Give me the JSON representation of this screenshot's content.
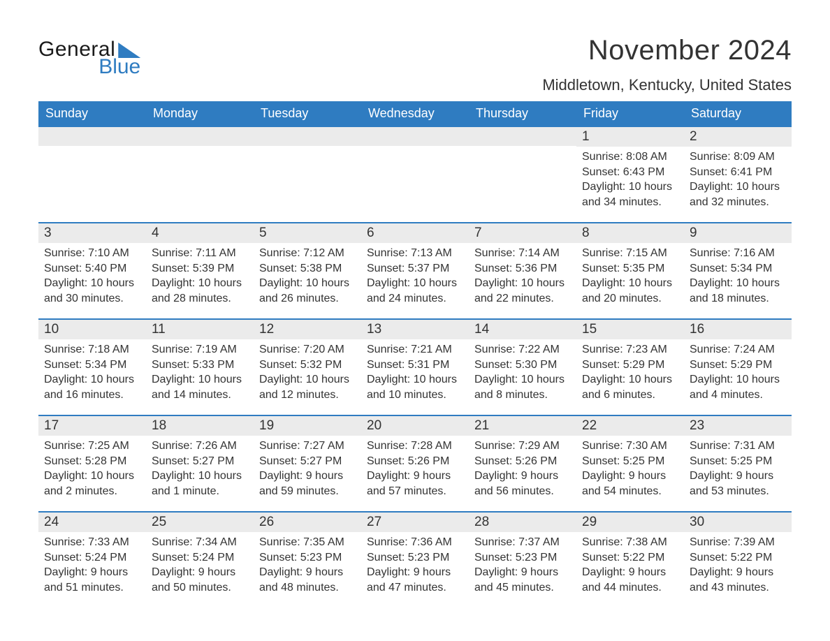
{
  "logo": {
    "text_general": "General",
    "text_blue": "Blue"
  },
  "header": {
    "month_title": "November 2024",
    "location": "Middletown, Kentucky, United States"
  },
  "colors": {
    "brand_blue": "#2f7cc1",
    "header_text": "#ffffff",
    "band_bg": "#ebebeb",
    "body_text": "#333333",
    "page_bg": "#ffffff"
  },
  "calendar": {
    "type": "table",
    "day_headers": [
      "Sunday",
      "Monday",
      "Tuesday",
      "Wednesday",
      "Thursday",
      "Friday",
      "Saturday"
    ],
    "weeks": [
      [
        {
          "blank": true
        },
        {
          "blank": true
        },
        {
          "blank": true
        },
        {
          "blank": true
        },
        {
          "blank": true
        },
        {
          "day": "1",
          "sunrise": "Sunrise: 8:08 AM",
          "sunset": "Sunset: 6:43 PM",
          "daylight": "Daylight: 10 hours and 34 minutes."
        },
        {
          "day": "2",
          "sunrise": "Sunrise: 8:09 AM",
          "sunset": "Sunset: 6:41 PM",
          "daylight": "Daylight: 10 hours and 32 minutes."
        }
      ],
      [
        {
          "day": "3",
          "sunrise": "Sunrise: 7:10 AM",
          "sunset": "Sunset: 5:40 PM",
          "daylight": "Daylight: 10 hours and 30 minutes."
        },
        {
          "day": "4",
          "sunrise": "Sunrise: 7:11 AM",
          "sunset": "Sunset: 5:39 PM",
          "daylight": "Daylight: 10 hours and 28 minutes."
        },
        {
          "day": "5",
          "sunrise": "Sunrise: 7:12 AM",
          "sunset": "Sunset: 5:38 PM",
          "daylight": "Daylight: 10 hours and 26 minutes."
        },
        {
          "day": "6",
          "sunrise": "Sunrise: 7:13 AM",
          "sunset": "Sunset: 5:37 PM",
          "daylight": "Daylight: 10 hours and 24 minutes."
        },
        {
          "day": "7",
          "sunrise": "Sunrise: 7:14 AM",
          "sunset": "Sunset: 5:36 PM",
          "daylight": "Daylight: 10 hours and 22 minutes."
        },
        {
          "day": "8",
          "sunrise": "Sunrise: 7:15 AM",
          "sunset": "Sunset: 5:35 PM",
          "daylight": "Daylight: 10 hours and 20 minutes."
        },
        {
          "day": "9",
          "sunrise": "Sunrise: 7:16 AM",
          "sunset": "Sunset: 5:34 PM",
          "daylight": "Daylight: 10 hours and 18 minutes."
        }
      ],
      [
        {
          "day": "10",
          "sunrise": "Sunrise: 7:18 AM",
          "sunset": "Sunset: 5:34 PM",
          "daylight": "Daylight: 10 hours and 16 minutes."
        },
        {
          "day": "11",
          "sunrise": "Sunrise: 7:19 AM",
          "sunset": "Sunset: 5:33 PM",
          "daylight": "Daylight: 10 hours and 14 minutes."
        },
        {
          "day": "12",
          "sunrise": "Sunrise: 7:20 AM",
          "sunset": "Sunset: 5:32 PM",
          "daylight": "Daylight: 10 hours and 12 minutes."
        },
        {
          "day": "13",
          "sunrise": "Sunrise: 7:21 AM",
          "sunset": "Sunset: 5:31 PM",
          "daylight": "Daylight: 10 hours and 10 minutes."
        },
        {
          "day": "14",
          "sunrise": "Sunrise: 7:22 AM",
          "sunset": "Sunset: 5:30 PM",
          "daylight": "Daylight: 10 hours and 8 minutes."
        },
        {
          "day": "15",
          "sunrise": "Sunrise: 7:23 AM",
          "sunset": "Sunset: 5:29 PM",
          "daylight": "Daylight: 10 hours and 6 minutes."
        },
        {
          "day": "16",
          "sunrise": "Sunrise: 7:24 AM",
          "sunset": "Sunset: 5:29 PM",
          "daylight": "Daylight: 10 hours and 4 minutes."
        }
      ],
      [
        {
          "day": "17",
          "sunrise": "Sunrise: 7:25 AM",
          "sunset": "Sunset: 5:28 PM",
          "daylight": "Daylight: 10 hours and 2 minutes."
        },
        {
          "day": "18",
          "sunrise": "Sunrise: 7:26 AM",
          "sunset": "Sunset: 5:27 PM",
          "daylight": "Daylight: 10 hours and 1 minute."
        },
        {
          "day": "19",
          "sunrise": "Sunrise: 7:27 AM",
          "sunset": "Sunset: 5:27 PM",
          "daylight": "Daylight: 9 hours and 59 minutes."
        },
        {
          "day": "20",
          "sunrise": "Sunrise: 7:28 AM",
          "sunset": "Sunset: 5:26 PM",
          "daylight": "Daylight: 9 hours and 57 minutes."
        },
        {
          "day": "21",
          "sunrise": "Sunrise: 7:29 AM",
          "sunset": "Sunset: 5:26 PM",
          "daylight": "Daylight: 9 hours and 56 minutes."
        },
        {
          "day": "22",
          "sunrise": "Sunrise: 7:30 AM",
          "sunset": "Sunset: 5:25 PM",
          "daylight": "Daylight: 9 hours and 54 minutes."
        },
        {
          "day": "23",
          "sunrise": "Sunrise: 7:31 AM",
          "sunset": "Sunset: 5:25 PM",
          "daylight": "Daylight: 9 hours and 53 minutes."
        }
      ],
      [
        {
          "day": "24",
          "sunrise": "Sunrise: 7:33 AM",
          "sunset": "Sunset: 5:24 PM",
          "daylight": "Daylight: 9 hours and 51 minutes."
        },
        {
          "day": "25",
          "sunrise": "Sunrise: 7:34 AM",
          "sunset": "Sunset: 5:24 PM",
          "daylight": "Daylight: 9 hours and 50 minutes."
        },
        {
          "day": "26",
          "sunrise": "Sunrise: 7:35 AM",
          "sunset": "Sunset: 5:23 PM",
          "daylight": "Daylight: 9 hours and 48 minutes."
        },
        {
          "day": "27",
          "sunrise": "Sunrise: 7:36 AM",
          "sunset": "Sunset: 5:23 PM",
          "daylight": "Daylight: 9 hours and 47 minutes."
        },
        {
          "day": "28",
          "sunrise": "Sunrise: 7:37 AM",
          "sunset": "Sunset: 5:23 PM",
          "daylight": "Daylight: 9 hours and 45 minutes."
        },
        {
          "day": "29",
          "sunrise": "Sunrise: 7:38 AM",
          "sunset": "Sunset: 5:22 PM",
          "daylight": "Daylight: 9 hours and 44 minutes."
        },
        {
          "day": "30",
          "sunrise": "Sunrise: 7:39 AM",
          "sunset": "Sunset: 5:22 PM",
          "daylight": "Daylight: 9 hours and 43 minutes."
        }
      ]
    ]
  }
}
